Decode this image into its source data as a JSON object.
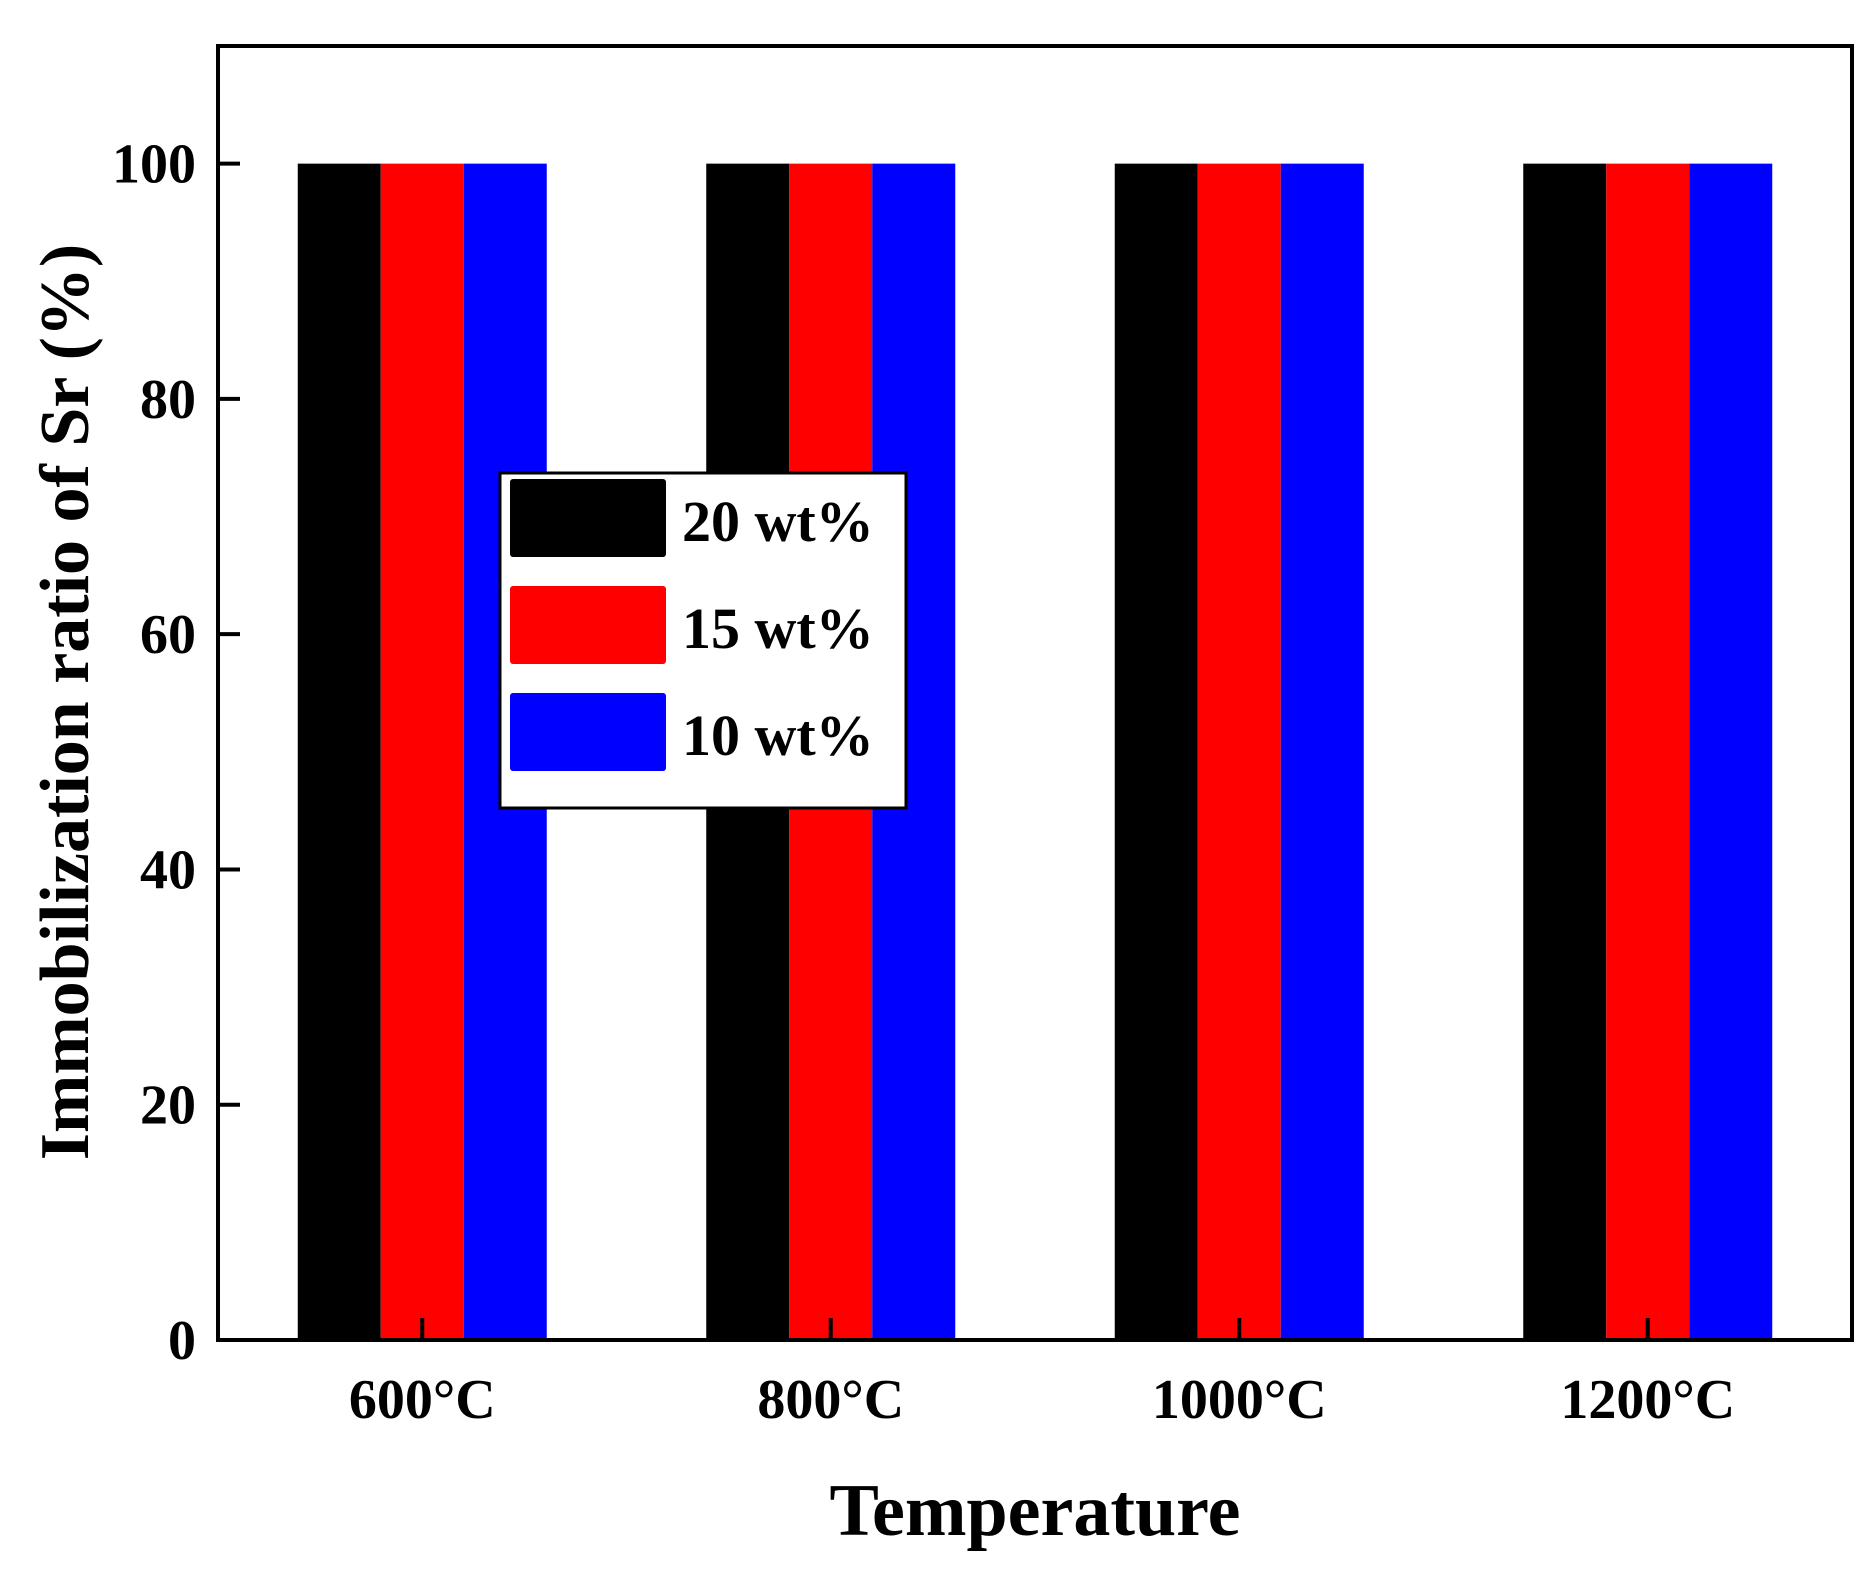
{
  "chart_data": {
    "type": "bar",
    "title": "",
    "xlabel": "Temperature",
    "ylabel": "Immobilization ratio of Sr (%)",
    "categories": [
      "600°C",
      "800°C",
      "1000°C",
      "1200°C"
    ],
    "series": [
      {
        "name": "20 wt%",
        "color": "#000000",
        "values": [
          100,
          100,
          100,
          100
        ]
      },
      {
        "name": "15 wt%",
        "color": "#ff0000",
        "values": [
          100,
          100,
          100,
          100
        ]
      },
      {
        "name": "10 wt%",
        "color": "#0000ff",
        "values": [
          100,
          100,
          100,
          100
        ]
      }
    ],
    "ylim": [
      0,
      110
    ],
    "yticks": [
      0,
      20,
      40,
      60,
      80,
      100
    ],
    "legend_position": "upper-left-center",
    "grid": false
  }
}
